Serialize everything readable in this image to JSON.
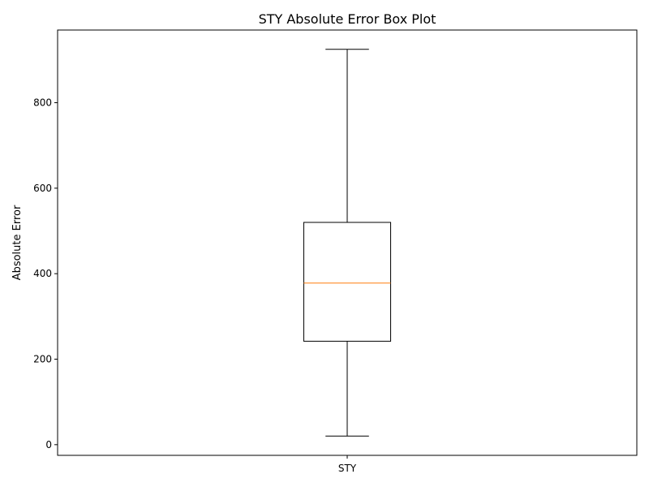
{
  "chart_data": {
    "type": "box",
    "title": "STY Absolute Error Box Plot",
    "xlabel": "",
    "ylabel": "Absolute Error",
    "categories": [
      "STY"
    ],
    "boxes": [
      {
        "label": "STY",
        "whisker_low": 20,
        "q1": 242,
        "median": 378,
        "q3": 520,
        "whisker_high": 925
      }
    ],
    "ylim": [
      -25,
      970
    ],
    "yticks": [
      0,
      200,
      400,
      600,
      800
    ],
    "ytick_labels": [
      "0",
      "200",
      "400",
      "600",
      "800"
    ],
    "grid": false,
    "legend": "none",
    "colors": {
      "box": "#000000",
      "whisker": "#000000",
      "median": "#ff7f0e",
      "axes": "#000000",
      "background": "#ffffff"
    }
  }
}
